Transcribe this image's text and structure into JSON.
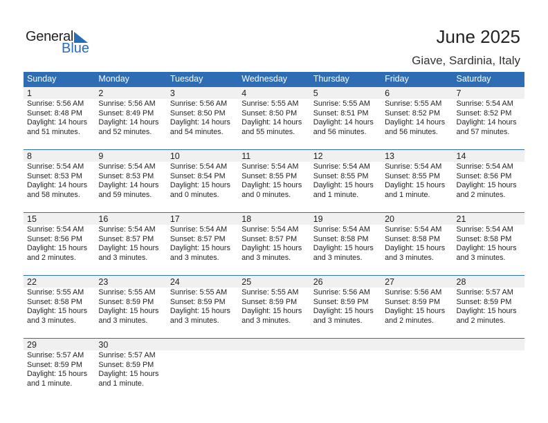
{
  "logo": {
    "general": "General",
    "blue": "Blue",
    "accent": "#2a6db5"
  },
  "header": {
    "title": "June 2025",
    "location": "Giave, Sardinia, Italy"
  },
  "weekdays": [
    "Sunday",
    "Monday",
    "Tuesday",
    "Wednesday",
    "Thursday",
    "Friday",
    "Saturday"
  ],
  "colors": {
    "header_bg": "#2e6db4",
    "day_bg": "#f0f0f0"
  },
  "days": [
    {
      "day": "1",
      "sunrise": "Sunrise: 5:56 AM",
      "sunset": "Sunset: 8:48 PM",
      "daylight1": "Daylight: 14 hours",
      "daylight2": "and 51 minutes."
    },
    {
      "day": "2",
      "sunrise": "Sunrise: 5:56 AM",
      "sunset": "Sunset: 8:49 PM",
      "daylight1": "Daylight: 14 hours",
      "daylight2": "and 52 minutes."
    },
    {
      "day": "3",
      "sunrise": "Sunrise: 5:56 AM",
      "sunset": "Sunset: 8:50 PM",
      "daylight1": "Daylight: 14 hours",
      "daylight2": "and 54 minutes."
    },
    {
      "day": "4",
      "sunrise": "Sunrise: 5:55 AM",
      "sunset": "Sunset: 8:50 PM",
      "daylight1": "Daylight: 14 hours",
      "daylight2": "and 55 minutes."
    },
    {
      "day": "5",
      "sunrise": "Sunrise: 5:55 AM",
      "sunset": "Sunset: 8:51 PM",
      "daylight1": "Daylight: 14 hours",
      "daylight2": "and 56 minutes."
    },
    {
      "day": "6",
      "sunrise": "Sunrise: 5:55 AM",
      "sunset": "Sunset: 8:52 PM",
      "daylight1": "Daylight: 14 hours",
      "daylight2": "and 56 minutes."
    },
    {
      "day": "7",
      "sunrise": "Sunrise: 5:54 AM",
      "sunset": "Sunset: 8:52 PM",
      "daylight1": "Daylight: 14 hours",
      "daylight2": "and 57 minutes."
    },
    {
      "day": "8",
      "sunrise": "Sunrise: 5:54 AM",
      "sunset": "Sunset: 8:53 PM",
      "daylight1": "Daylight: 14 hours",
      "daylight2": "and 58 minutes."
    },
    {
      "day": "9",
      "sunrise": "Sunrise: 5:54 AM",
      "sunset": "Sunset: 8:53 PM",
      "daylight1": "Daylight: 14 hours",
      "daylight2": "and 59 minutes."
    },
    {
      "day": "10",
      "sunrise": "Sunrise: 5:54 AM",
      "sunset": "Sunset: 8:54 PM",
      "daylight1": "Daylight: 15 hours",
      "daylight2": "and 0 minutes."
    },
    {
      "day": "11",
      "sunrise": "Sunrise: 5:54 AM",
      "sunset": "Sunset: 8:55 PM",
      "daylight1": "Daylight: 15 hours",
      "daylight2": "and 0 minutes."
    },
    {
      "day": "12",
      "sunrise": "Sunrise: 5:54 AM",
      "sunset": "Sunset: 8:55 PM",
      "daylight1": "Daylight: 15 hours",
      "daylight2": "and 1 minute."
    },
    {
      "day": "13",
      "sunrise": "Sunrise: 5:54 AM",
      "sunset": "Sunset: 8:55 PM",
      "daylight1": "Daylight: 15 hours",
      "daylight2": "and 1 minute."
    },
    {
      "day": "14",
      "sunrise": "Sunrise: 5:54 AM",
      "sunset": "Sunset: 8:56 PM",
      "daylight1": "Daylight: 15 hours",
      "daylight2": "and 2 minutes."
    },
    {
      "day": "15",
      "sunrise": "Sunrise: 5:54 AM",
      "sunset": "Sunset: 8:56 PM",
      "daylight1": "Daylight: 15 hours",
      "daylight2": "and 2 minutes."
    },
    {
      "day": "16",
      "sunrise": "Sunrise: 5:54 AM",
      "sunset": "Sunset: 8:57 PM",
      "daylight1": "Daylight: 15 hours",
      "daylight2": "and 3 minutes."
    },
    {
      "day": "17",
      "sunrise": "Sunrise: 5:54 AM",
      "sunset": "Sunset: 8:57 PM",
      "daylight1": "Daylight: 15 hours",
      "daylight2": "and 3 minutes."
    },
    {
      "day": "18",
      "sunrise": "Sunrise: 5:54 AM",
      "sunset": "Sunset: 8:57 PM",
      "daylight1": "Daylight: 15 hours",
      "daylight2": "and 3 minutes."
    },
    {
      "day": "19",
      "sunrise": "Sunrise: 5:54 AM",
      "sunset": "Sunset: 8:58 PM",
      "daylight1": "Daylight: 15 hours",
      "daylight2": "and 3 minutes."
    },
    {
      "day": "20",
      "sunrise": "Sunrise: 5:54 AM",
      "sunset": "Sunset: 8:58 PM",
      "daylight1": "Daylight: 15 hours",
      "daylight2": "and 3 minutes."
    },
    {
      "day": "21",
      "sunrise": "Sunrise: 5:54 AM",
      "sunset": "Sunset: 8:58 PM",
      "daylight1": "Daylight: 15 hours",
      "daylight2": "and 3 minutes."
    },
    {
      "day": "22",
      "sunrise": "Sunrise: 5:55 AM",
      "sunset": "Sunset: 8:58 PM",
      "daylight1": "Daylight: 15 hours",
      "daylight2": "and 3 minutes."
    },
    {
      "day": "23",
      "sunrise": "Sunrise: 5:55 AM",
      "sunset": "Sunset: 8:59 PM",
      "daylight1": "Daylight: 15 hours",
      "daylight2": "and 3 minutes."
    },
    {
      "day": "24",
      "sunrise": "Sunrise: 5:55 AM",
      "sunset": "Sunset: 8:59 PM",
      "daylight1": "Daylight: 15 hours",
      "daylight2": "and 3 minutes."
    },
    {
      "day": "25",
      "sunrise": "Sunrise: 5:55 AM",
      "sunset": "Sunset: 8:59 PM",
      "daylight1": "Daylight: 15 hours",
      "daylight2": "and 3 minutes."
    },
    {
      "day": "26",
      "sunrise": "Sunrise: 5:56 AM",
      "sunset": "Sunset: 8:59 PM",
      "daylight1": "Daylight: 15 hours",
      "daylight2": "and 3 minutes."
    },
    {
      "day": "27",
      "sunrise": "Sunrise: 5:56 AM",
      "sunset": "Sunset: 8:59 PM",
      "daylight1": "Daylight: 15 hours",
      "daylight2": "and 2 minutes."
    },
    {
      "day": "28",
      "sunrise": "Sunrise: 5:57 AM",
      "sunset": "Sunset: 8:59 PM",
      "daylight1": "Daylight: 15 hours",
      "daylight2": "and 2 minutes."
    },
    {
      "day": "29",
      "sunrise": "Sunrise: 5:57 AM",
      "sunset": "Sunset: 8:59 PM",
      "daylight1": "Daylight: 15 hours",
      "daylight2": "and 1 minute."
    },
    {
      "day": "30",
      "sunrise": "Sunrise: 5:57 AM",
      "sunset": "Sunset: 8:59 PM",
      "daylight1": "Daylight: 15 hours",
      "daylight2": "and 1 minute."
    }
  ]
}
